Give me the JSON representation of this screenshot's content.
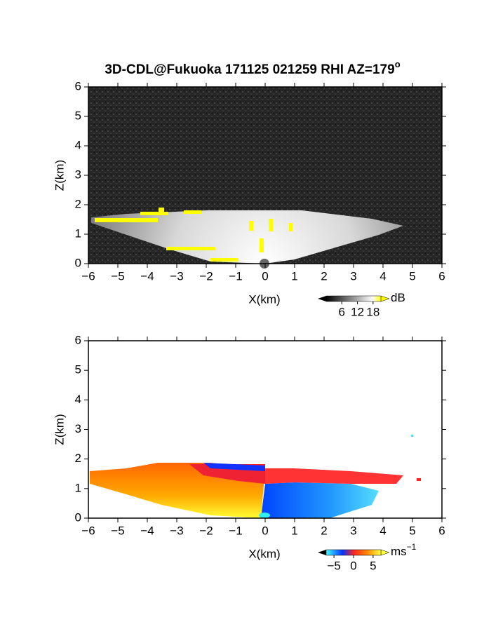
{
  "chart_data": [
    {
      "type": "image",
      "title": "3D-CDL@Fukuoka 171125 021259 RHI AZ=179",
      "title_superscript": "o",
      "xlabel": "X(km)",
      "ylabel": "Z(km)",
      "xlim": [
        -6,
        6
      ],
      "ylim": [
        0,
        6
      ],
      "xticks": [
        {
          "value": -6,
          "label": "−6"
        },
        {
          "value": -5,
          "label": "−5"
        },
        {
          "value": -4,
          "label": "−4"
        },
        {
          "value": -3,
          "label": "−3"
        },
        {
          "value": -2,
          "label": "−2"
        },
        {
          "value": -1,
          "label": "−1"
        },
        0,
        1,
        2,
        3,
        4,
        5,
        6
      ],
      "yticks": [
        0,
        1,
        2,
        3,
        4,
        5,
        6
      ],
      "colorbar": {
        "label": "dB",
        "lim": [
          0,
          21
        ],
        "ticks": [
          6,
          12,
          18
        ]
      }
    },
    {
      "type": "image",
      "xlabel": "X(km)",
      "ylabel": "Z(km)",
      "xlim": [
        -6,
        6
      ],
      "ylim": [
        0,
        6
      ],
      "xticks": [
        {
          "value": -6,
          "label": "−6"
        },
        {
          "value": -5,
          "label": "−5"
        },
        {
          "value": -4,
          "label": "−4"
        },
        {
          "value": -3,
          "label": "−3"
        },
        {
          "value": -2,
          "label": "−2"
        },
        {
          "value": -1,
          "label": "−1"
        },
        0,
        1,
        2,
        3,
        4,
        5,
        6
      ],
      "yticks": [
        0,
        1,
        2,
        3,
        4,
        5,
        6
      ],
      "colorbar": {
        "label": "ms",
        "label_superscript": "−1",
        "lim": [
          -7,
          7
        ],
        "ticks": [
          {
            "value": -5,
            "label": "−5"
          },
          0,
          5
        ]
      }
    }
  ]
}
